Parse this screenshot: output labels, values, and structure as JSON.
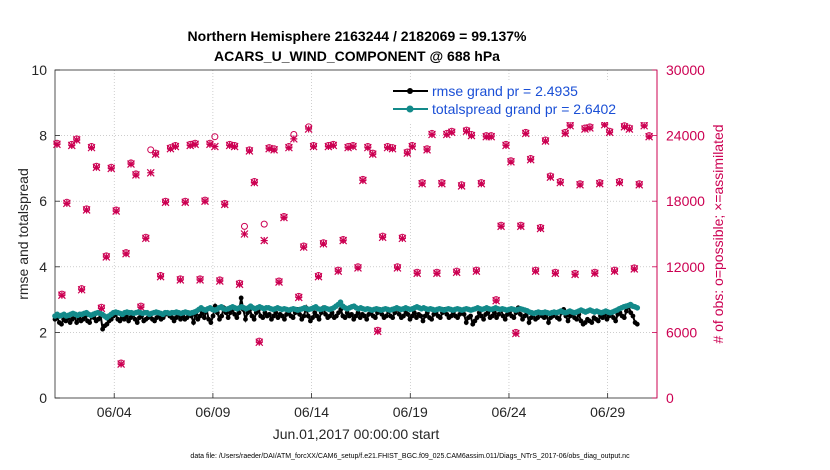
{
  "chart_data": {
    "type": "line",
    "title_line1": "Northern Hemisphere 2163244 / 2182069 = 99.137%",
    "title_line2": "ACARS_U_WIND_COMPONENT @ 688 hPa",
    "xlabel": "Jun.01,2017 00:00:00 start",
    "ylabel_left": "rmse and totalspread",
    "ylabel_right": "# of obs: o=possible; ×=assimilated",
    "footnote": "data file: /Users/raeder/DAI/ATM_forcXX/CAM6_setup/f.e21.FHIST_BGC.f09_025.CAM6assim.011/Diags_NTrS_2017-06/obs_diag_output.nc",
    "xlim": [
      1,
      31.5
    ],
    "ylim_left": [
      0,
      10
    ],
    "ylim_right": [
      0,
      30000
    ],
    "x_ticks": [
      4,
      9,
      14,
      19,
      24,
      29
    ],
    "x_tick_labels": [
      "06/04",
      "06/09",
      "06/14",
      "06/19",
      "06/24",
      "06/29"
    ],
    "y_ticks_left": [
      0,
      2,
      4,
      6,
      8,
      10
    ],
    "y_tick_labels_left": [
      "0",
      "2",
      "4",
      "6",
      "8",
      "10"
    ],
    "y_ticks_right": [
      0,
      6000,
      12000,
      18000,
      24000,
      30000
    ],
    "y_tick_labels_right": [
      "0",
      "6000",
      "12000",
      "18000",
      "24000",
      "30000"
    ],
    "legend_position": "top-right",
    "grid": true,
    "colors": {
      "rmse": "#000000",
      "spread": "#138a8a",
      "obs": "#cc0052"
    },
    "series": [
      {
        "name": "rmse grand pr = 2.4935",
        "values": [
          2.4,
          2.45,
          2.3,
          2.25,
          2.4,
          2.35,
          2.45,
          2.3,
          2.4,
          2.5,
          2.3,
          2.45,
          2.35,
          2.4,
          2.5,
          2.35,
          2.3,
          2.5,
          2.45,
          2.35,
          2.4,
          2.55,
          2.1,
          2.2,
          2.25,
          2.35,
          2.4,
          2.5,
          2.55,
          2.4,
          2.35,
          2.45,
          2.4,
          2.5,
          2.35,
          2.45,
          2.55,
          2.4,
          2.3,
          2.45,
          2.5,
          2.35,
          2.4,
          2.45,
          2.5,
          2.4,
          2.35,
          2.45,
          2.5,
          2.4,
          2.45,
          2.55,
          2.6,
          2.5,
          2.45,
          2.35,
          2.45,
          2.55,
          2.4,
          2.5,
          2.4,
          2.45,
          2.6,
          2.5,
          2.3,
          2.55,
          2.4,
          2.5,
          2.6,
          2.45,
          2.7,
          2.4,
          2.3,
          2.5,
          2.8,
          2.6,
          2.4,
          2.5,
          2.75,
          2.6,
          2.45,
          2.6,
          2.7,
          2.55,
          2.45,
          2.6,
          3.05,
          2.7,
          2.4,
          2.6,
          2.7,
          2.5,
          2.4,
          2.6,
          2.7,
          2.5,
          2.45,
          2.6,
          2.5,
          2.55,
          2.4,
          2.5,
          2.6,
          2.45,
          2.55,
          2.5,
          2.4,
          2.55,
          2.6,
          2.5,
          2.45,
          2.6,
          2.7,
          2.55,
          2.4,
          2.5,
          2.75,
          2.5,
          2.35,
          2.45,
          2.6,
          2.5,
          2.4,
          2.6,
          2.75,
          2.55,
          2.45,
          2.5,
          2.6,
          2.45,
          2.5,
          2.6,
          2.7,
          2.5,
          2.45,
          2.6,
          2.5,
          2.55,
          2.4,
          2.5,
          2.6,
          2.45,
          2.55,
          2.5,
          2.4,
          2.55,
          2.6,
          2.5,
          2.45,
          2.6,
          2.7,
          2.55,
          2.45,
          2.5,
          2.65,
          2.5,
          2.45,
          2.6,
          2.75,
          2.55,
          2.45,
          2.5,
          2.65,
          2.55,
          2.4,
          2.5,
          2.6,
          2.45,
          2.55,
          2.5,
          2.35,
          2.5,
          2.6,
          2.45,
          2.4,
          2.55,
          2.6,
          2.5,
          2.45,
          2.6,
          2.7,
          2.55,
          2.45,
          2.5,
          2.6,
          2.5,
          2.45,
          2.55,
          2.65,
          2.55,
          2.3,
          2.45,
          2.5,
          2.25,
          2.35,
          2.45,
          2.6,
          2.5,
          2.4,
          2.55,
          2.6,
          2.45,
          2.5,
          2.6,
          2.45,
          2.55,
          2.7,
          2.5,
          2.4,
          2.55,
          2.6,
          2.5,
          2.45,
          2.6,
          2.75,
          2.55,
          2.4,
          2.5,
          2.6,
          2.3,
          2.45,
          2.55,
          2.4,
          2.45,
          2.6,
          2.5,
          2.45,
          2.55,
          2.3,
          2.45,
          2.5,
          2.6,
          2.45,
          2.4,
          2.6,
          2.7,
          2.5,
          2.35,
          2.5,
          2.6,
          2.45,
          2.4,
          2.55,
          2.35,
          2.25,
          2.3,
          2.4,
          2.35,
          2.3,
          2.45,
          2.4,
          2.35,
          2.5,
          2.45,
          2.55,
          2.4,
          2.5,
          2.6,
          2.45,
          2.35,
          2.55,
          2.6,
          2.5,
          2.45,
          2.65,
          2.8,
          2.6,
          2.5,
          2.3,
          2.25
        ]
      },
      {
        "name": "totalspread grand pr = 2.6402",
        "values": [
          2.5,
          2.55,
          2.5,
          2.52,
          2.55,
          2.5,
          2.52,
          2.55,
          2.58,
          2.55,
          2.52,
          2.55,
          2.55,
          2.58,
          2.6,
          2.55,
          2.52,
          2.55,
          2.58,
          2.6,
          2.58,
          2.55,
          2.5,
          2.45,
          2.5,
          2.55,
          2.6,
          2.62,
          2.6,
          2.58,
          2.55,
          2.6,
          2.62,
          2.6,
          2.6,
          2.58,
          2.6,
          2.62,
          2.6,
          2.58,
          2.6,
          2.6,
          2.55,
          2.58,
          2.6,
          2.62,
          2.6,
          2.58,
          2.55,
          2.6,
          2.6,
          2.58,
          2.6,
          2.6,
          2.62,
          2.6,
          2.58,
          2.6,
          2.62,
          2.6,
          2.58,
          2.6,
          2.62,
          2.65,
          2.7,
          2.75,
          2.7,
          2.68,
          2.72,
          2.75,
          2.7,
          2.68,
          2.7,
          2.75,
          2.78,
          2.72,
          2.7,
          2.72,
          2.75,
          2.78,
          2.75,
          2.72,
          2.75,
          2.78,
          2.75,
          2.72,
          2.75,
          2.8,
          2.75,
          2.72,
          2.75,
          2.78,
          2.75,
          2.72,
          2.75,
          2.75,
          2.72,
          2.7,
          2.72,
          2.75,
          2.72,
          2.7,
          2.72,
          2.7,
          2.68,
          2.7,
          2.72,
          2.7,
          2.68,
          2.7,
          2.72,
          2.75,
          2.72,
          2.7,
          2.72,
          2.75,
          2.78,
          2.72,
          2.7,
          2.72,
          2.75,
          2.72,
          2.7,
          2.72,
          2.75,
          2.8,
          2.85,
          2.92,
          2.8,
          2.75,
          2.72,
          2.75,
          2.78,
          2.8,
          2.75,
          2.72,
          2.75,
          2.72,
          2.7,
          2.72,
          2.7,
          2.68,
          2.7,
          2.72,
          2.7,
          2.68,
          2.7,
          2.72,
          2.7,
          2.68,
          2.7,
          2.72,
          2.75,
          2.72,
          2.7,
          2.72,
          2.75,
          2.72,
          2.7,
          2.72,
          2.75,
          2.78,
          2.75,
          2.72,
          2.75,
          2.72,
          2.7,
          2.72,
          2.7,
          2.68,
          2.7,
          2.72,
          2.7,
          2.68,
          2.7,
          2.72,
          2.7,
          2.68,
          2.7,
          2.72,
          2.7,
          2.68,
          2.7,
          2.72,
          2.7,
          2.68,
          2.7,
          2.72,
          2.75,
          2.72,
          2.7,
          2.72,
          2.75,
          2.72,
          2.7,
          2.72,
          2.75,
          2.72,
          2.7,
          2.72,
          2.7,
          2.68,
          2.7,
          2.72,
          2.7,
          2.68,
          2.7,
          2.72,
          2.7,
          2.68,
          2.66,
          2.62,
          2.6,
          2.58,
          2.6,
          2.62,
          2.6,
          2.6,
          2.62,
          2.6,
          2.58,
          2.6,
          2.62,
          2.6,
          2.62,
          2.65,
          2.62,
          2.6,
          2.62,
          2.65,
          2.62,
          2.6,
          2.62,
          2.65,
          2.68,
          2.65,
          2.62,
          2.65,
          2.68,
          2.65,
          2.62,
          2.65,
          2.62,
          2.6,
          2.62,
          2.65,
          2.62,
          2.6,
          2.62,
          2.65,
          2.68,
          2.72,
          2.75,
          2.78,
          2.8,
          2.82,
          2.85,
          2.8,
          2.78,
          2.75
        ]
      },
      {
        "name": "obs possible",
        "x": [
          1.1,
          1.35,
          1.6,
          1.85,
          2.1,
          2.35,
          2.6,
          2.85,
          3.1,
          3.35,
          3.6,
          3.85,
          4.1,
          4.35,
          4.6,
          4.85,
          5.1,
          5.35,
          5.6,
          5.85,
          6.1,
          6.35,
          6.6,
          6.85,
          7.1,
          7.35,
          7.6,
          7.85,
          8.1,
          8.35,
          8.6,
          8.85,
          9.1,
          9.35,
          9.6,
          9.85,
          10.1,
          10.35,
          10.6,
          10.85,
          11.1,
          11.35,
          11.6,
          11.85,
          12.1,
          12.35,
          12.6,
          12.85,
          13.1,
          13.35,
          13.6,
          13.85,
          14.1,
          14.35,
          14.6,
          14.85,
          15.1,
          15.35,
          15.6,
          15.85,
          16.1,
          16.35,
          16.6,
          16.85,
          17.1,
          17.35,
          17.6,
          17.85,
          18.1,
          18.35,
          18.6,
          18.85,
          19.1,
          19.35,
          19.6,
          19.85,
          20.1,
          20.35,
          20.6,
          20.85,
          21.1,
          21.35,
          21.6,
          21.85,
          22.1,
          22.35,
          22.6,
          22.85,
          23.1,
          23.35,
          23.6,
          23.85,
          24.1,
          24.35,
          24.6,
          24.85,
          25.1,
          25.35,
          25.6,
          25.85,
          26.1,
          26.35,
          26.6,
          26.85,
          27.1,
          27.35,
          27.6,
          27.85,
          28.1,
          28.35,
          28.6,
          28.85,
          29.1,
          29.35,
          29.6,
          29.85,
          30.1,
          30.35,
          30.6,
          30.85,
          31.1
        ],
        "values": [
          23300,
          9500,
          17900,
          23200,
          23700,
          10000,
          17300,
          23000,
          21200,
          8300,
          13000,
          21100,
          17200,
          3200,
          13300,
          21500,
          20500,
          8400,
          14700,
          22700,
          22400,
          11200,
          18000,
          22900,
          23100,
          10900,
          18000,
          23200,
          23300,
          10900,
          18100,
          23300,
          23900,
          10800,
          17800,
          23200,
          23100,
          10500,
          15700,
          22700,
          19800,
          5200,
          15900,
          22900,
          22800,
          10700,
          16600,
          23000,
          24100,
          9300,
          13900,
          24800,
          23100,
          11200,
          14200,
          23100,
          23200,
          11700,
          14500,
          23000,
          23100,
          12000,
          20000,
          23000,
          22400,
          6200,
          14800,
          23000,
          22900,
          12000,
          14700,
          22500,
          23100,
          11500,
          19700,
          22800,
          24200,
          11500,
          19700,
          24200,
          24400,
          11600,
          19500,
          24500,
          24100,
          11700,
          19700,
          24000,
          24000,
          9000,
          15800,
          23200,
          21700,
          6000,
          15800,
          24300,
          21900,
          11700,
          15600,
          23600,
          20300,
          11500,
          19800,
          24300,
          25000,
          11400,
          19600,
          24700,
          24800,
          11500,
          19700,
          25100,
          24400,
          11700,
          19800,
          24900,
          24700,
          11900,
          19600,
          25000,
          24000
        ],
        "marker": "o"
      },
      {
        "name": "obs assimilated",
        "values": [
          23200,
          9400,
          17800,
          23100,
          23600,
          9900,
          17200,
          22900,
          21100,
          8200,
          12900,
          21000,
          17100,
          3100,
          13200,
          21400,
          20400,
          8300,
          14600,
          20600,
          22300,
          11100,
          17900,
          22800,
          23000,
          10800,
          17900,
          23100,
          23200,
          10800,
          18000,
          23200,
          23000,
          10700,
          17700,
          23100,
          23000,
          10400,
          15000,
          22600,
          19700,
          5100,
          14400,
          22800,
          22700,
          10600,
          16500,
          22900,
          23700,
          9200,
          13800,
          24600,
          23000,
          11100,
          14100,
          23000,
          23100,
          11600,
          14400,
          22900,
          23000,
          11900,
          19900,
          22900,
          22300,
          6100,
          14700,
          22900,
          22800,
          11900,
          14600,
          22400,
          23000,
          11400,
          19600,
          22700,
          24100,
          11400,
          19600,
          24100,
          24300,
          11500,
          19400,
          24400,
          24000,
          11600,
          19600,
          23900,
          23900,
          8900,
          15700,
          23100,
          21600,
          5900,
          15700,
          24200,
          21800,
          11600,
          15500,
          23500,
          20200,
          11400,
          19700,
          24200,
          24900,
          11300,
          19500,
          24600,
          24700,
          11400,
          19600,
          25000,
          24300,
          11600,
          19700,
          24800,
          24600,
          11800,
          19500,
          24900,
          23900
        ]
      }
    ]
  }
}
